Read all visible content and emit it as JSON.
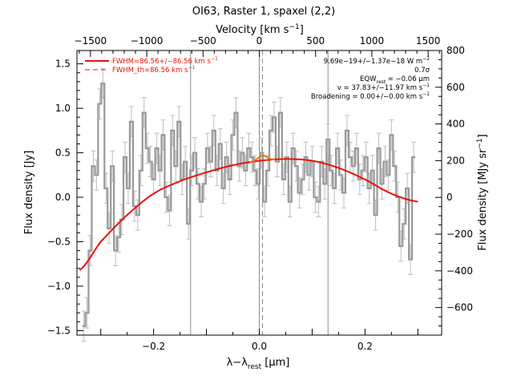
{
  "chart_data": {
    "type": "line",
    "title": "OI63, Raster 1, spaxel (2,2)",
    "xlabel": "λ−λ",
    "xlabel_sub": "rest",
    "xlabel_unit": " [μm]",
    "ylabel_left": "Flux density [Jy]",
    "ylabel_right": "Flux density [MJy sr",
    "ylabel_right_sup": "−1",
    "ylabel_right_end": "]",
    "x2label": "Velocity [km s",
    "x2label_sup": "−1",
    "x2label_end": "]",
    "xlim": [
      -0.345,
      0.345
    ],
    "ylim": [
      -1.55,
      1.65
    ],
    "y2lim": [
      -750,
      800
    ],
    "x2lim": [
      -1620,
      1620
    ],
    "xticks": [
      -0.2,
      0.0,
      0.2
    ],
    "xtick_labels": [
      "−0.2",
      "0.0",
      "0.2"
    ],
    "yticks": [
      -1.5,
      -1.0,
      -0.5,
      0.0,
      0.5,
      1.0,
      1.5
    ],
    "ytick_labels": [
      "−1.5",
      "−1.0",
      "−0.5",
      "0.0",
      "0.5",
      "1.0",
      "1.5"
    ],
    "y2ticks": [
      -600,
      -400,
      -200,
      0,
      200,
      400,
      600,
      800
    ],
    "y2tick_labels": [
      "−600",
      "−400",
      "−200",
      "0",
      "200",
      "400",
      "600",
      "800"
    ],
    "x2ticks": [
      -1500,
      -1000,
      -500,
      0,
      500,
      1000,
      1500
    ],
    "x2tick_labels": [
      "−1500",
      "−1000",
      "−500",
      "0",
      "500",
      "1000",
      "1500"
    ],
    "vlines_solid": [
      -0.13,
      0.0,
      0.13
    ],
    "vline_dashed": 0.006,
    "legend": [
      {
        "label": "FWHM=86.56+/−86.56 km s",
        "sup": "−1",
        "style": "solid",
        "color": "#e8120c"
      },
      {
        "label": "FWHM_th=86.56 km s",
        "sup": "−1",
        "style": "dashed",
        "color": "#e8120c"
      }
    ],
    "annotations": [
      {
        "text": "9.69e−19+/−1.37e−18 W m",
        "sup": "−2"
      },
      {
        "text": "0.7σ",
        "sup": ""
      },
      {
        "text": "EQW",
        "sub": "rest",
        "rest": " = −0.06 μm"
      },
      {
        "text": "v = 37.83+/−11.97 km s",
        "sup": "−1"
      },
      {
        "text": "Broadening = 0.00+/−0.00 km s",
        "sup": "−1"
      }
    ],
    "colors": {
      "data": "#999999",
      "fit": "#e8120c",
      "line_fit": "#e87a10",
      "vline": "#8c8c8c"
    },
    "series": [
      {
        "type": "step",
        "x": [
          -0.332,
          -0.326,
          -0.32,
          -0.314,
          -0.308,
          -0.302,
          -0.296,
          -0.29,
          -0.284,
          -0.278,
          -0.272,
          -0.266,
          -0.26,
          -0.254,
          -0.248,
          -0.242,
          -0.236,
          -0.23,
          -0.224,
          -0.218,
          -0.212,
          -0.206,
          -0.2,
          -0.194,
          -0.188,
          -0.182,
          -0.176,
          -0.17,
          -0.164,
          -0.158,
          -0.152,
          -0.146,
          -0.14,
          -0.134,
          -0.128,
          -0.122,
          -0.116,
          -0.11,
          -0.104,
          -0.098,
          -0.092,
          -0.086,
          -0.08,
          -0.074,
          -0.068,
          -0.062,
          -0.056,
          -0.05,
          -0.044,
          -0.038,
          -0.032,
          -0.026,
          -0.02,
          -0.014,
          -0.008,
          -0.002,
          0.004,
          0.01,
          0.016,
          0.022,
          0.028,
          0.034,
          0.04,
          0.046,
          0.052,
          0.058,
          0.064,
          0.07,
          0.076,
          0.082,
          0.088,
          0.094,
          0.1,
          0.106,
          0.112,
          0.118,
          0.124,
          0.13,
          0.136,
          0.142,
          0.148,
          0.154,
          0.16,
          0.166,
          0.172,
          0.178,
          0.184,
          0.19,
          0.196,
          0.202,
          0.208,
          0.214,
          0.22,
          0.226,
          0.232,
          0.238,
          0.244,
          0.25,
          0.256,
          0.262,
          0.268,
          0.274,
          0.28,
          0.286,
          0.292
        ],
        "y": [
          -1.45,
          -1.3,
          -0.6,
          0.35,
          0.25,
          1.05,
          1.28,
          0.1,
          -0.35,
          0.35,
          -0.6,
          -0.45,
          -0.25,
          0.45,
          0.1,
          0.85,
          -0.1,
          -0.2,
          0.3,
          0.95,
          0.55,
          0.4,
          0.2,
          0.55,
          0.3,
          0.7,
          0.0,
          -0.15,
          0.75,
          0.35,
          0.85,
          0.2,
          0.4,
          -0.3,
          0.3,
          0.5,
          0.15,
          -0.05,
          0.15,
          0.55,
          0.4,
          0.75,
          0.3,
          0.6,
          0.1,
          0.45,
          0.2,
          0.7,
          0.95,
          0.35,
          0.5,
          0.3,
          0.55,
          0.45,
          0.3,
          0.15,
          0.5,
          -0.05,
          0.3,
          0.75,
          0.9,
          0.4,
          0.95,
          0.2,
          0.45,
          -0.05,
          0.55,
          0.35,
          0.05,
          0.2,
          0.45,
          0.25,
          0.4,
          0.0,
          -0.05,
          0.4,
          0.15,
          0.65,
          0.3,
          0.1,
          0.55,
          0.25,
          0.05,
          0.75,
          0.45,
          0.35,
          0.55,
          0.2,
          0.3,
          0.45,
          0.1,
          0.3,
          -0.2,
          0.55,
          0.15,
          0.4,
          0.25,
          0.7,
          0.35,
          0.0,
          -0.55,
          -0.3,
          0.1,
          -0.7,
          0.45
        ],
        "err": 0.17
      },
      {
        "type": "fit",
        "x": [
          -0.34,
          -0.3,
          -0.25,
          -0.2,
          -0.15,
          -0.1,
          -0.05,
          0.0,
          0.05,
          0.1,
          0.15,
          0.2,
          0.25,
          0.3
        ],
        "y": [
          -0.82,
          -0.5,
          -0.2,
          0.04,
          0.18,
          0.28,
          0.36,
          0.41,
          0.43,
          0.41,
          0.33,
          0.2,
          0.04,
          -0.05
        ],
        "line_peak": {
          "x": 0.006,
          "y": 0.47,
          "sigma": 0.008
        }
      }
    ]
  }
}
